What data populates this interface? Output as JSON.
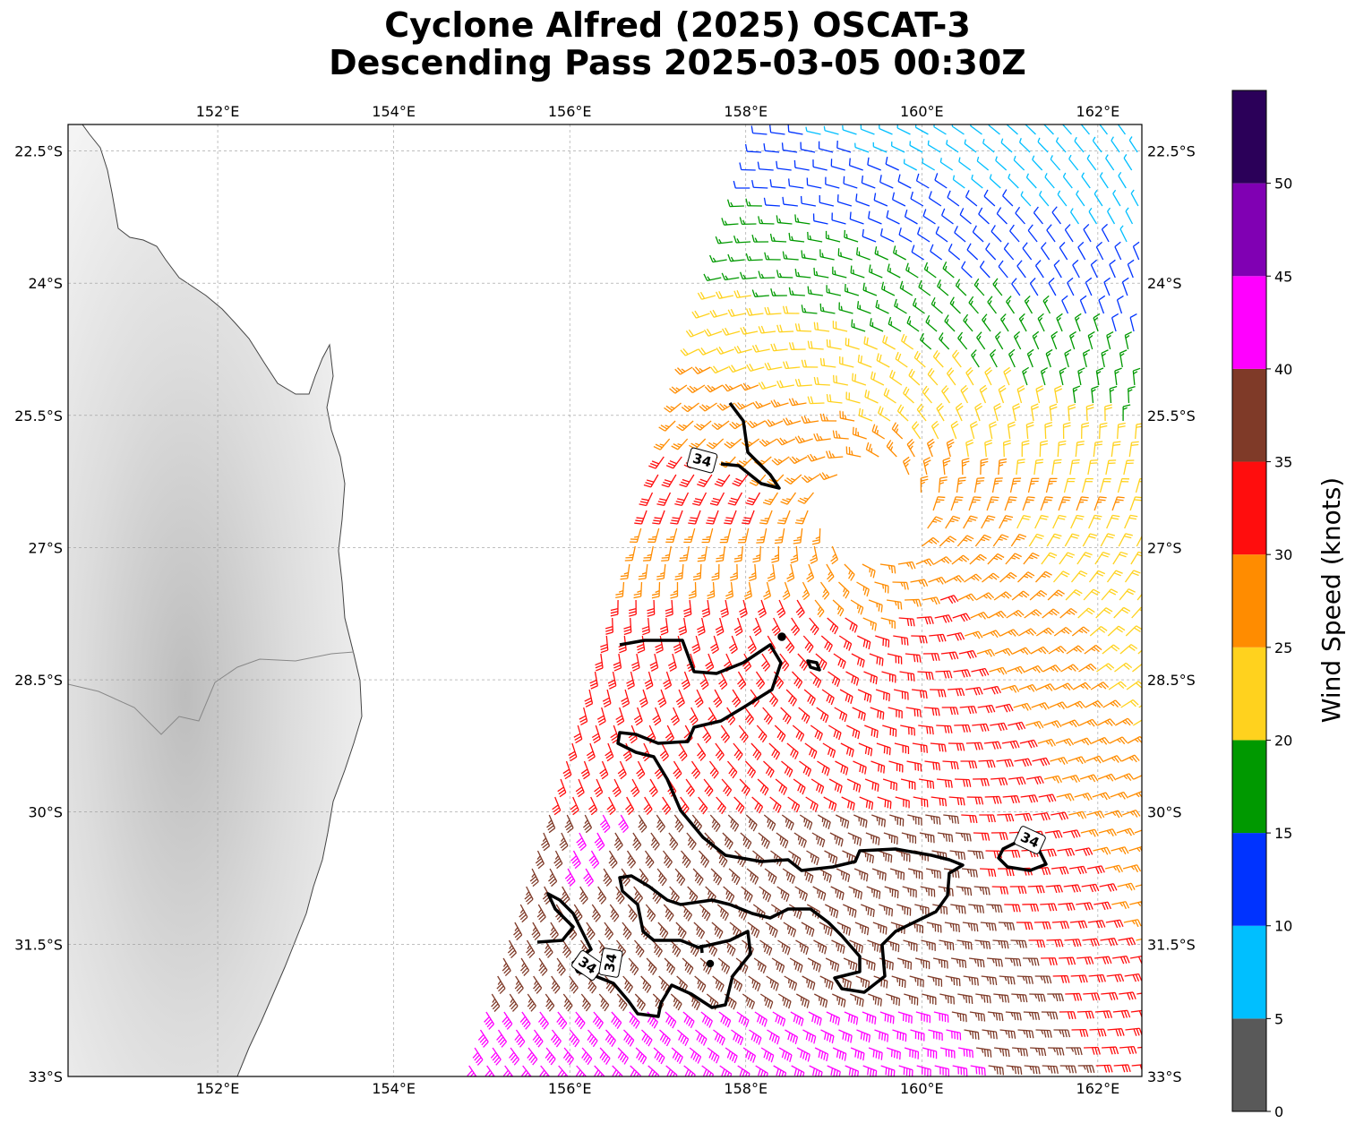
{
  "title_line1": "Cyclone Alfred (2025) OSCAT-3",
  "title_line2": "Descending Pass 2025-03-05 00:30Z",
  "map": {
    "lon_range": [
      150.3,
      162.5
    ],
    "lat_range": [
      -33.0,
      -22.2
    ],
    "lon_ticks": [
      152,
      154,
      156,
      158,
      160,
      162
    ],
    "lon_tick_labels": [
      "152°E",
      "154°E",
      "156°E",
      "158°E",
      "160°E",
      "162°E"
    ],
    "lat_ticks": [
      -22.5,
      -24,
      -25.5,
      -27,
      -28.5,
      -30,
      -31.5,
      -33
    ],
    "lat_tick_labels": [
      "22.5°S",
      "24°S",
      "25.5°S",
      "27°S",
      "28.5°S",
      "30°S",
      "31.5°S",
      "33°S"
    ],
    "grid": true,
    "contour_level_label": "34",
    "cyclone_center_approx": {
      "lon": 159.4,
      "lat": -26.6
    }
  },
  "colorbar": {
    "label": "Wind Speed (knots)",
    "bounds": [
      0,
      5,
      10,
      15,
      20,
      25,
      30,
      35,
      40,
      45,
      50,
      55
    ],
    "tick_labels": [
      "0",
      "5",
      "10",
      "15",
      "20",
      "25",
      "30",
      "35",
      "40",
      "45",
      "50"
    ],
    "colors": [
      "#595959",
      "#00bfff",
      "#0033ff",
      "#009900",
      "#ffd21e",
      "#ff8c00",
      "#ff0d0d",
      "#7f3a28",
      "#ff00ff",
      "#8000b3",
      "#2b0059"
    ]
  },
  "chart_data": {
    "type": "wind-barb map",
    "title": "Cyclone Alfred (2025) OSCAT-3 Descending Pass 2025-03-05 00:30Z",
    "colorbar_label": "Wind Speed (knots)",
    "contour_level_kt": 34,
    "swath_lon_range": [
      154.8,
      162.5
    ]
  }
}
